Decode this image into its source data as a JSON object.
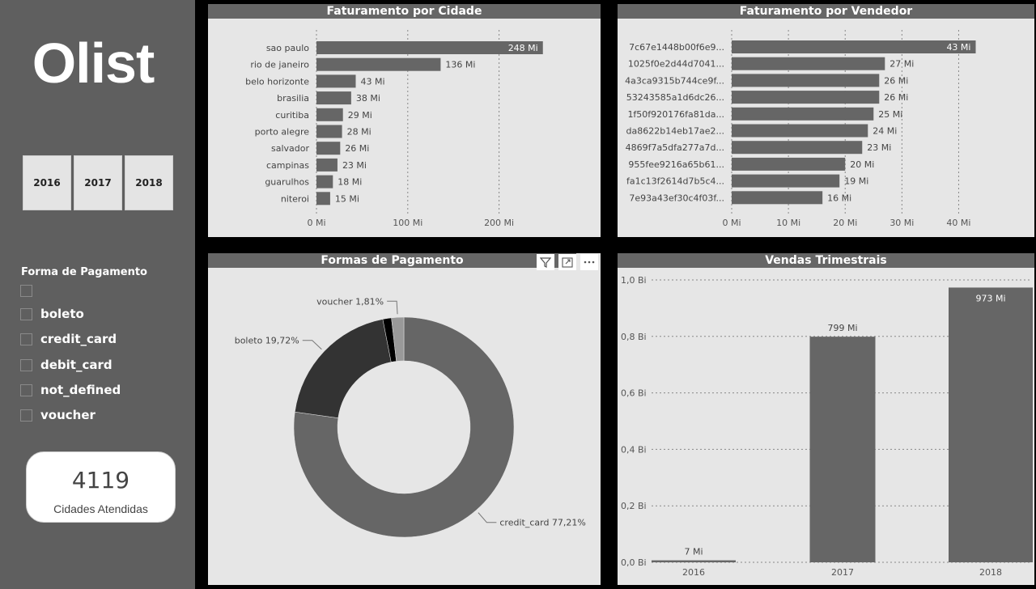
{
  "sidebar": {
    "logo": "Olist",
    "years": [
      "2016",
      "2017",
      "2018"
    ],
    "payment_filter": {
      "title": "Forma de Pagamento",
      "options": [
        "",
        "boleto",
        "credit_card",
        "debit_card",
        "not_defined",
        "voucher"
      ]
    },
    "kpi": {
      "value": "4119",
      "label": "Cidades Atendidas"
    }
  },
  "panels": {
    "cidade": {
      "title": "Faturamento por Cidade",
      "chart_data": {
        "type": "bar",
        "orientation": "horizontal",
        "title": "Faturamento por Cidade",
        "categories": [
          "sao paulo",
          "rio de janeiro",
          "belo horizonte",
          "brasilia",
          "curitiba",
          "porto alegre",
          "salvador",
          "campinas",
          "guarulhos",
          "niteroi"
        ],
        "values": [
          248,
          136,
          43,
          38,
          29,
          28,
          26,
          23,
          18,
          15
        ],
        "value_labels": [
          "248 Mi",
          "136 Mi",
          "43 Mi",
          "38 Mi",
          "29 Mi",
          "28 Mi",
          "26 Mi",
          "23 Mi",
          "18 Mi",
          "15 Mi"
        ],
        "xlim": [
          0,
          250
        ],
        "ticks": [
          0,
          100,
          200
        ],
        "tick_labels": [
          "0 Mi",
          "100 Mi",
          "200 Mi"
        ],
        "grid": true
      }
    },
    "vendedor": {
      "title": "Faturamento por Vendedor",
      "chart_data": {
        "type": "bar",
        "orientation": "horizontal",
        "title": "Faturamento por Vendedor",
        "categories": [
          "7c67e1448b00f6e9...",
          "1025f0e2d44d7041...",
          "4a3ca9315b744ce9f...",
          "53243585a1d6dc26...",
          "1f50f920176fa81da...",
          "da8622b14eb17ae2...",
          "4869f7a5dfa277a7d...",
          "955fee9216a65b61...",
          "fa1c13f2614d7b5c4...",
          "7e93a43ef30c4f03f..."
        ],
        "values": [
          43,
          27,
          26,
          26,
          25,
          24,
          23,
          20,
          19,
          16
        ],
        "value_labels": [
          "43 Mi",
          "27 Mi",
          "26 Mi",
          "26 Mi",
          "25 Mi",
          "24 Mi",
          "23 Mi",
          "20 Mi",
          "19 Mi",
          "16 Mi"
        ],
        "xlim": [
          0,
          43.5
        ],
        "ticks": [
          0,
          10,
          20,
          30,
          40
        ],
        "tick_labels": [
          "0 Mi",
          "10 Mi",
          "20 Mi",
          "30 Mi",
          "40 Mi"
        ],
        "grid": true
      }
    },
    "pagamento": {
      "title": "Formas de Pagamento",
      "chart_data": {
        "type": "pie",
        "variant": "donut",
        "title": "Formas de Pagamento",
        "slices": [
          {
            "name": "credit_card",
            "value": 77.21,
            "label": "credit_card 77,21%",
            "color": "#666666"
          },
          {
            "name": "boleto",
            "value": 19.72,
            "label": "boleto 19,72%",
            "color": "#333333"
          },
          {
            "name": "debit_card",
            "value": 1.26,
            "label": "",
            "color": "#000000"
          },
          {
            "name": "voucher",
            "value": 1.81,
            "label": "voucher 1,81%",
            "color": "#999999"
          }
        ]
      }
    },
    "trimestrais": {
      "title": "Vendas Trimestrais",
      "chart_data": {
        "type": "bar",
        "orientation": "vertical",
        "title": "Vendas Trimestrais",
        "categories": [
          "2016",
          "2017",
          "2018"
        ],
        "values": [
          7,
          799,
          973
        ],
        "value_labels": [
          "7 Mi",
          "799 Mi",
          "973 Mi"
        ],
        "ylim": [
          0,
          1000
        ],
        "ticks": [
          0,
          200,
          400,
          600,
          800,
          1000
        ],
        "tick_labels": [
          "0,0 Bi",
          "0,2 Bi",
          "0,4 Bi",
          "0,6 Bi",
          "0,8 Bi",
          "1,0 Bi"
        ],
        "grid": true
      }
    }
  },
  "icons": {
    "filter": "filter-icon",
    "focus": "focus-mode-icon",
    "more": "more-options-icon"
  },
  "colors": {
    "sidebar": "#5f5f5f",
    "panel": "#e6e6e6",
    "bar": "#666666",
    "title_bar": "#666666"
  }
}
